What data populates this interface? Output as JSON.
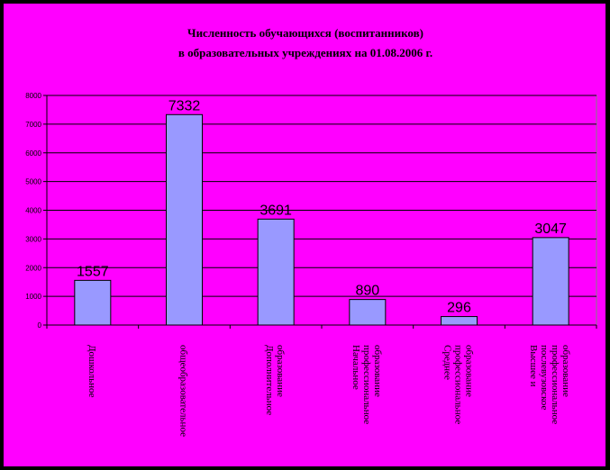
{
  "chart_data": {
    "type": "bar",
    "title_lines": [
      "Численность обучающихся (воспитанников)",
      "в образовательных учреждениях на 01.08.2006 г."
    ],
    "categories": [
      [
        "Дошкольное"
      ],
      [
        "общеобразовательное"
      ],
      [
        "Дополнительное",
        "образование"
      ],
      [
        "Начальное",
        "профессиональное",
        "образование"
      ],
      [
        "Среднее",
        "профессиональное",
        "образование"
      ],
      [
        "Высшее и",
        "послевузовское",
        "профессиональное",
        "образование"
      ]
    ],
    "values": [
      1557,
      7332,
      3691,
      890,
      296,
      3047
    ],
    "ylim": [
      0,
      8000
    ],
    "yticks": [
      0,
      1000,
      2000,
      3000,
      4000,
      5000,
      6000,
      7000,
      8000
    ],
    "grid": true,
    "legend": false,
    "colors": {
      "background": "#ff00ff",
      "plot_area": "#ff00ff",
      "bar": "#9999ff",
      "outline": "#000000"
    }
  }
}
